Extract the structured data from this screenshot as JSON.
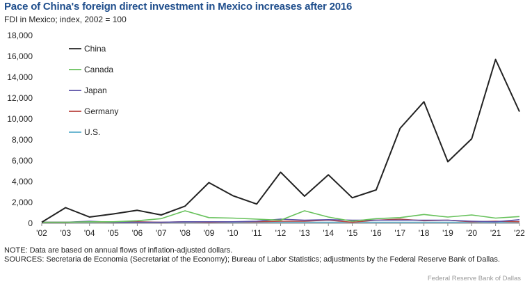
{
  "title": "Pace of China's foreign direct investment in Mexico increases after 2016",
  "subtitle": "FDI in Mexico; index, 2002 = 100",
  "note": "NOTE: Data are based on annual flows of inflation-adjusted dollars.",
  "sources": "SOURCES: Secretaria de Economia (Secretariat of the Economy); Bureau of Labor Statistics; adjustments by the Federal Reserve Bank of Dallas.",
  "credit": "Federal Reserve Bank of Dallas",
  "chart_data": {
    "type": "line",
    "title": "Pace of China's foreign direct investment in Mexico increases after 2016",
    "ylabel": "FDI in Mexico; index, 2002 = 100",
    "xlabel": "",
    "categories": [
      "'02",
      "'03",
      "'04",
      "'05",
      "'06",
      "'07",
      "'08",
      "'09",
      "'10",
      "'11",
      "'12",
      "'13",
      "'14",
      "'15",
      "'16",
      "'17",
      "'18",
      "'19",
      "'20",
      "'21",
      "'22"
    ],
    "ylim": [
      0,
      18000
    ],
    "yticks": [
      0,
      2000,
      4000,
      6000,
      8000,
      10000,
      12000,
      14000,
      16000,
      18000
    ],
    "ytick_labels": [
      "0",
      "2,000",
      "4,000",
      "6,000",
      "8,000",
      "10,000",
      "12,000",
      "14,000",
      "16,000",
      "18,000"
    ],
    "grid": false,
    "legend_position": "top-left",
    "series": [
      {
        "name": "China",
        "color": "#222222",
        "values": [
          100,
          1500,
          600,
          900,
          1250,
          800,
          1650,
          3900,
          2650,
          1850,
          4900,
          2600,
          4650,
          2450,
          3200,
          9100,
          11650,
          5900,
          8100,
          15700,
          10700
        ]
      },
      {
        "name": "Canada",
        "color": "#66c15a",
        "values": [
          100,
          100,
          150,
          150,
          250,
          450,
          1200,
          550,
          500,
          400,
          300,
          1200,
          600,
          200,
          450,
          550,
          850,
          600,
          800,
          500,
          650
        ]
      },
      {
        "name": "Japan",
        "color": "#5a4fa6",
        "values": [
          100,
          100,
          200,
          100,
          100,
          100,
          150,
          150,
          150,
          200,
          400,
          300,
          350,
          300,
          300,
          300,
          300,
          300,
          200,
          150,
          350
        ]
      },
      {
        "name": "Germany",
        "color": "#b8423d",
        "values": [
          100,
          100,
          150,
          100,
          150,
          100,
          150,
          100,
          150,
          150,
          200,
          200,
          300,
          100,
          300,
          400,
          250,
          300,
          150,
          200,
          150
        ]
      },
      {
        "name": "U.S.",
        "color": "#5aaecb",
        "values": [
          100,
          100,
          100,
          100,
          100,
          100,
          100,
          100,
          100,
          100,
          100,
          100,
          100,
          100,
          100,
          100,
          100,
          100,
          100,
          100,
          100
        ]
      }
    ]
  }
}
